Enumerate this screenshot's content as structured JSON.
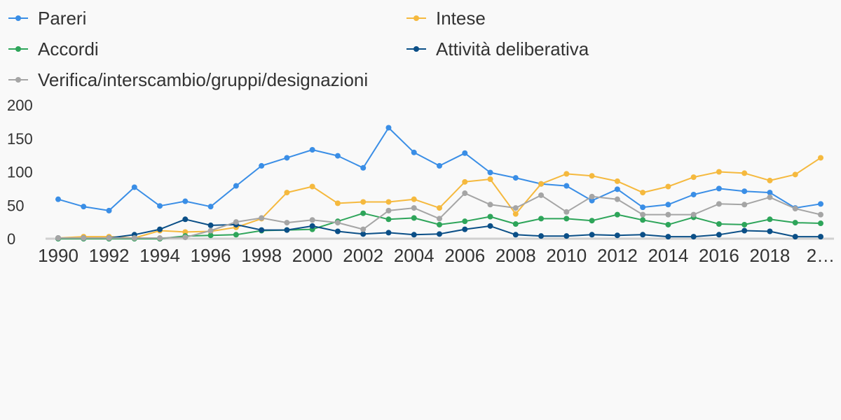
{
  "chart_data": {
    "type": "line",
    "title": "",
    "xlabel": "",
    "ylabel": "",
    "ylim": [
      0,
      200
    ],
    "yticks": [
      "0",
      "50",
      "100",
      "150",
      "200"
    ],
    "xtick_labels": [
      "1990",
      "1992",
      "1994",
      "1996",
      "1998",
      "2000",
      "2002",
      "2004",
      "2006",
      "2008",
      "2010",
      "2012",
      "2014",
      "2016",
      "2018",
      "2…"
    ],
    "x": [
      1990,
      1991,
      1992,
      1993,
      1994,
      1995,
      1996,
      1997,
      1998,
      1999,
      2000,
      2001,
      2002,
      2003,
      2004,
      2005,
      2006,
      2007,
      2008,
      2009,
      2010,
      2011,
      2012,
      2013,
      2014,
      2015,
      2016,
      2017,
      2018,
      2019,
      2020
    ],
    "legend_position": "top",
    "grid": false,
    "series": [
      {
        "name": "Pareri",
        "color": "#3a8ee6",
        "values": [
          59,
          48,
          42,
          77,
          49,
          56,
          48,
          79,
          109,
          121,
          133,
          124,
          106,
          166,
          129,
          109,
          128,
          99,
          91,
          82,
          79,
          57,
          74,
          47,
          51,
          66,
          75,
          71,
          69,
          46,
          52
        ]
      },
      {
        "name": "Intese",
        "color": "#f5b93e",
        "values": [
          1,
          3,
          3,
          1,
          12,
          10,
          11,
          17,
          30,
          69,
          78,
          53,
          55,
          55,
          59,
          46,
          85,
          89,
          37,
          82,
          97,
          94,
          86,
          69,
          78,
          92,
          100,
          98,
          87,
          96,
          121
        ]
      },
      {
        "name": "Accordi",
        "color": "#2ea55a",
        "values": [
          0,
          0,
          0,
          0,
          0,
          4,
          5,
          6,
          12,
          13,
          14,
          26,
          38,
          29,
          31,
          21,
          26,
          33,
          22,
          30,
          30,
          27,
          36,
          28,
          21,
          32,
          22,
          21,
          29,
          24,
          23
        ]
      },
      {
        "name": "Attività deliberativa",
        "color": "#0b4f87",
        "values": [
          1,
          1,
          1,
          6,
          14,
          29,
          20,
          21,
          13,
          13,
          19,
          11,
          7,
          9,
          6,
          7,
          14,
          19,
          6,
          4,
          4,
          6,
          5,
          6,
          3,
          3,
          6,
          12,
          11,
          3,
          3
        ]
      },
      {
        "name": "Verifica/interscambio/gruppi/designazioni",
        "color": "#a5a5a5",
        "values": [
          1,
          1,
          1,
          1,
          1,
          2,
          12,
          25,
          31,
          24,
          28,
          24,
          14,
          42,
          46,
          30,
          68,
          51,
          46,
          65,
          40,
          63,
          59,
          36,
          36,
          36,
          52,
          51,
          62,
          45,
          36
        ]
      }
    ]
  }
}
